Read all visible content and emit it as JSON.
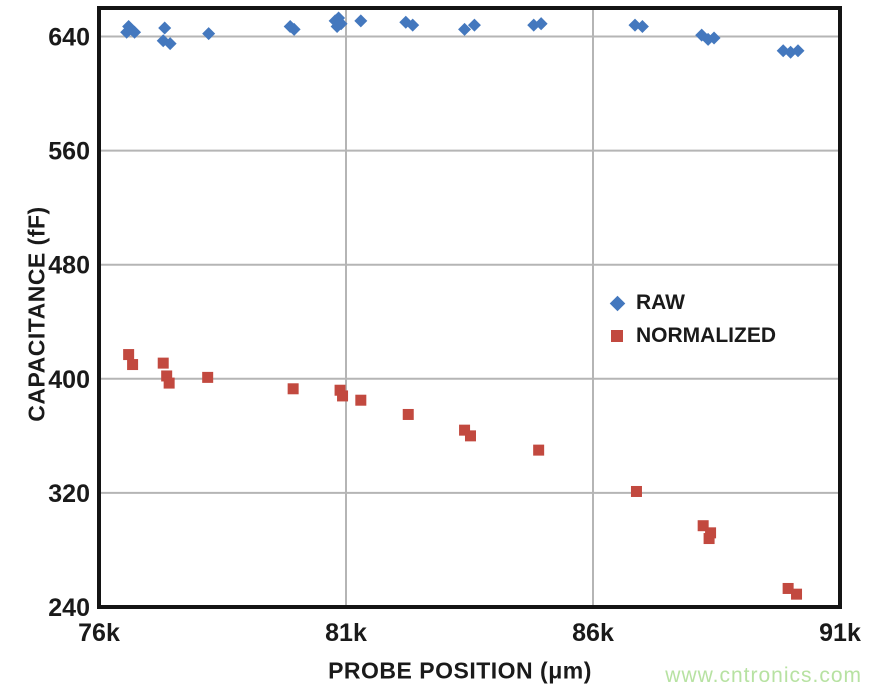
{
  "page": {
    "background": "#ffffff"
  },
  "watermark": {
    "text": "www.cntronics.com",
    "color": "#b7e2a2"
  },
  "chart_data": {
    "type": "scatter",
    "title": "",
    "xlabel": "PROBE POSITION (μm)",
    "ylabel": "CAPACITANCE (fF)",
    "xlim": [
      76000,
      91000
    ],
    "ylim": [
      240,
      660
    ],
    "grid": true,
    "legend_position": "middle-right",
    "x_ticks": [
      {
        "v": 76000,
        "label": "76k"
      },
      {
        "v": 81000,
        "label": "81k"
      },
      {
        "v": 86000,
        "label": "86k"
      },
      {
        "v": 91000,
        "label": "91k"
      }
    ],
    "y_ticks": [
      {
        "v": 240,
        "label": "240"
      },
      {
        "v": 320,
        "label": "320"
      },
      {
        "v": 400,
        "label": "400"
      },
      {
        "v": 480,
        "label": "480"
      },
      {
        "v": 560,
        "label": "560"
      },
      {
        "v": 640,
        "label": "640"
      }
    ],
    "series": [
      {
        "name": "RAW",
        "marker": "diamond",
        "color": "#4478be",
        "points": [
          [
            76560,
            643
          ],
          [
            76600,
            647
          ],
          [
            76720,
            643
          ],
          [
            77300,
            637
          ],
          [
            77330,
            646
          ],
          [
            77440,
            635
          ],
          [
            78220,
            642
          ],
          [
            79870,
            647
          ],
          [
            79950,
            645
          ],
          [
            80780,
            651
          ],
          [
            80820,
            647
          ],
          [
            80850,
            653
          ],
          [
            80900,
            649
          ],
          [
            81300,
            651
          ],
          [
            82210,
            650
          ],
          [
            82350,
            648
          ],
          [
            83400,
            645
          ],
          [
            83600,
            648
          ],
          [
            84800,
            648
          ],
          [
            84950,
            649
          ],
          [
            86850,
            648
          ],
          [
            87000,
            647
          ],
          [
            88200,
            641
          ],
          [
            88330,
            638
          ],
          [
            88450,
            639
          ],
          [
            89850,
            630
          ],
          [
            90000,
            629
          ],
          [
            90150,
            630
          ]
        ]
      },
      {
        "name": "NORMALIZED",
        "marker": "square",
        "color": "#c2493f",
        "points": [
          [
            76600,
            417
          ],
          [
            76680,
            410
          ],
          [
            77300,
            411
          ],
          [
            77370,
            402
          ],
          [
            77420,
            397
          ],
          [
            78200,
            401
          ],
          [
            79930,
            393
          ],
          [
            80880,
            392
          ],
          [
            80930,
            388
          ],
          [
            81300,
            385
          ],
          [
            82260,
            375
          ],
          [
            83400,
            364
          ],
          [
            83520,
            360
          ],
          [
            84900,
            350
          ],
          [
            86880,
            321
          ],
          [
            88230,
            297
          ],
          [
            88350,
            288
          ],
          [
            88380,
            292
          ],
          [
            89950,
            253
          ],
          [
            90120,
            249
          ]
        ]
      }
    ]
  }
}
